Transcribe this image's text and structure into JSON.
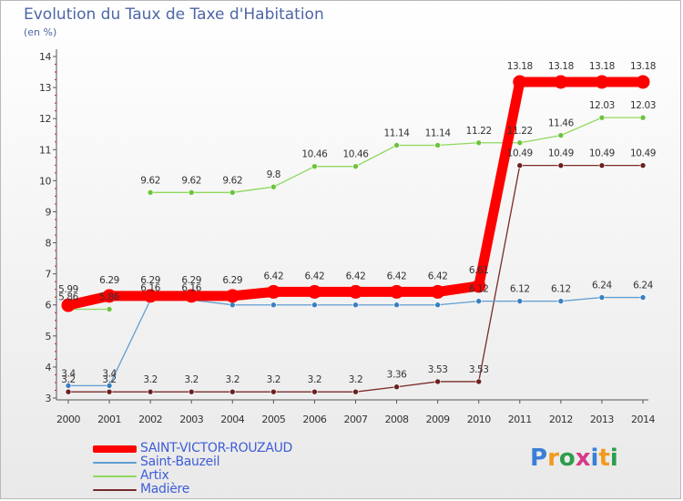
{
  "title": "Evolution du Taux de Taxe d'Habitation",
  "subtitle": "(en %)",
  "logo": {
    "text": "Proxiti",
    "colors": [
      "#3a7fd6",
      "#f29a1f",
      "#2e9c4e",
      "#d63a8a"
    ]
  },
  "chart_data": {
    "type": "line",
    "title": "Evolution du Taux de Taxe d'Habitation",
    "subtitle": "(en %)",
    "x": [
      "2000",
      "2001",
      "2002",
      "2003",
      "2004",
      "2005",
      "2006",
      "2007",
      "2008",
      "2009",
      "2010",
      "2011",
      "2012",
      "2013",
      "2014"
    ],
    "ylim": [
      3,
      14
    ],
    "yticks": [
      3,
      4,
      5,
      6,
      7,
      8,
      9,
      10,
      11,
      12,
      13,
      14
    ],
    "grid": false,
    "legend_position": "bottom-left",
    "series": [
      {
        "name": "SAINT-VICTOR-ROUZAUD",
        "color": "#ff0000",
        "marker_color": "#ff0000",
        "values": [
          5.99,
          6.29,
          6.29,
          6.29,
          6.29,
          6.42,
          6.42,
          6.42,
          6.42,
          6.42,
          6.61,
          13.18,
          13.18,
          13.18,
          13.18
        ],
        "labels": [
          "5.99",
          "6.29",
          "6.29",
          "6.29",
          "6.29",
          "6.42",
          "6.42",
          "6.42",
          "6.42",
          "6.42",
          "6.61",
          "13.18",
          "13.18",
          "13.18",
          "13.18"
        ]
      },
      {
        "name": "Saint-Bauzeil",
        "color": "#5f9ed1",
        "marker_color": "#3a7fc2",
        "values": [
          3.4,
          3.4,
          6.16,
          6.16,
          6,
          6,
          6,
          6,
          6,
          6,
          6.12,
          6.12,
          6.12,
          6.24,
          6.24
        ],
        "labels": [
          "3.4",
          "3.4",
          "6.16",
          "6.16",
          "",
          "",
          "",
          "",
          "",
          "",
          "6.12",
          "6.12",
          "6.12",
          "6.24",
          "6.24"
        ]
      },
      {
        "name": "Artix",
        "color": "#8fd85c",
        "marker_color": "#6cc33c",
        "values": [
          5.86,
          5.86,
          9.62,
          9.62,
          9.62,
          9.8,
          10.46,
          10.46,
          11.14,
          11.14,
          11.22,
          11.22,
          11.46,
          12.03,
          12.03
        ],
        "labels": [
          "5.86",
          "5.86",
          "9.62",
          "9.62",
          "9.62",
          "9.8",
          "10.46",
          "10.46",
          "11.14",
          "11.14",
          "11.22",
          "11.22",
          "11.46",
          "12.03",
          "12.03"
        ],
        "segment_gaps": [
          1
        ]
      },
      {
        "name": "Madière",
        "color": "#7a2a2a",
        "marker_color": "#6b1f1f",
        "values": [
          3.2,
          3.2,
          3.2,
          3.2,
          3.2,
          3.2,
          3.2,
          3.2,
          3.36,
          3.53,
          3.53,
          10.49,
          10.49,
          10.49,
          10.49
        ],
        "labels": [
          "3.2",
          "3.2",
          "3.2",
          "3.2",
          "3.2",
          "3.2",
          "3.2",
          "3.2",
          "3.36",
          "3.53",
          "3.53",
          "10.49",
          "10.49",
          "10.49",
          "10.49"
        ]
      }
    ]
  }
}
